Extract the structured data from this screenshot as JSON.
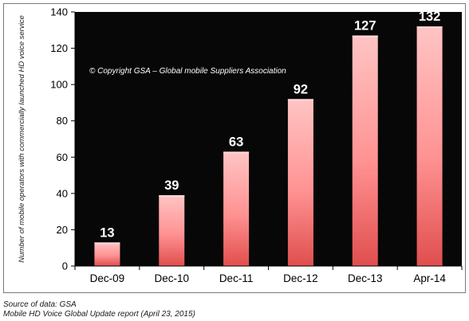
{
  "chart_data": {
    "type": "bar",
    "categories": [
      "Dec-09",
      "Dec-10",
      "Dec-11",
      "Dec-12",
      "Dec-13",
      "Apr-14"
    ],
    "values": [
      13,
      39,
      63,
      92,
      127,
      132
    ],
    "data_labels": [
      "13",
      "39",
      "63",
      "92",
      "127",
      "132"
    ],
    "title": "",
    "xlabel": "",
    "ylabel": "Number of mobile operators with commercially launched HD voice service",
    "ylim": [
      0,
      140
    ],
    "yticks": [
      0,
      20,
      40,
      60,
      80,
      100,
      120,
      140
    ],
    "ytick_labels": [
      "0",
      "20",
      "40",
      "60",
      "80",
      "100",
      "120",
      "140"
    ],
    "grid": false,
    "legend": "none",
    "annotation": "© Copyright GSA – Global mobile Suppliers Association",
    "colors": {
      "plot_background": "#070707",
      "bar_light": "#ffc4c4",
      "bar_mid": "#ff9292",
      "bar_dark": "#e04e4e",
      "data_label": "#ffffff"
    }
  },
  "footer": {
    "source": "Source of data: GSA",
    "report": "Mobile HD Voice Global Update report (April 23, 2015)"
  }
}
